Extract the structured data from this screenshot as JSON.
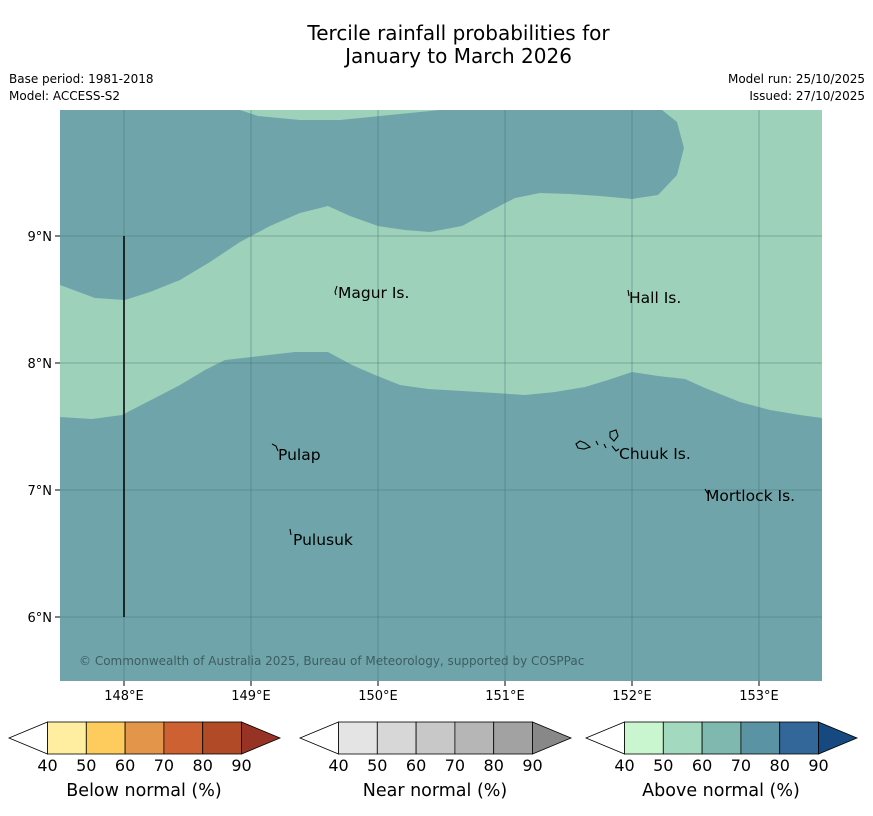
{
  "title_line1": "Tercile rainfall probabilities for",
  "title_line2": "January to March 2026",
  "base_period": "Base period: 1981-2018",
  "model": "Model: ACCESS-S2",
  "model_run": "Model run: 25/10/2025",
  "issued": "Issued: 27/10/2025",
  "copyright": "© Commonwealth of Australia 2025, Bureau of Meteorology, supported by COSPPac",
  "map": {
    "lat_ticks": [
      "9°N",
      "8°N",
      "7°N",
      "6°N"
    ],
    "lon_ticks": [
      "148°E",
      "149°E",
      "150°E",
      "151°E",
      "152°E",
      "153°E"
    ],
    "places": [
      {
        "name": "Magur Is."
      },
      {
        "name": "Hall Is."
      },
      {
        "name": "Pulap"
      },
      {
        "name": "Chuuk Is."
      },
      {
        "name": "Mortlock Is."
      },
      {
        "name": "Pulusuk"
      }
    ],
    "regions": [
      {
        "category": "Above normal",
        "range": "70-80",
        "color": "#6fa5aa"
      },
      {
        "category": "Above normal",
        "range": "50-60",
        "color": "#9dd1b9"
      }
    ]
  },
  "legends": [
    {
      "label": "Below normal (%)",
      "ticks": [
        "40",
        "50",
        "60",
        "70",
        "80",
        "90"
      ],
      "colors": [
        "#ffffff",
        "#ffeda0",
        "#fecc5c",
        "#e3964a",
        "#cd6132",
        "#b14a27",
        "#973324"
      ]
    },
    {
      "label": "Near normal (%)",
      "ticks": [
        "40",
        "50",
        "60",
        "70",
        "80",
        "90"
      ],
      "colors": [
        "#ffffff",
        "#e4e4e4",
        "#d7d7d7",
        "#c8c8c8",
        "#b6b6b6",
        "#a2a2a2",
        "#888888"
      ]
    },
    {
      "label": "Above normal (%)",
      "ticks": [
        "40",
        "50",
        "60",
        "70",
        "80",
        "90"
      ],
      "colors": [
        "#ffffff",
        "#c9f5cf",
        "#a3d9bf",
        "#7fb8ae",
        "#5a93a3",
        "#346799",
        "#16497f"
      ]
    }
  ]
}
